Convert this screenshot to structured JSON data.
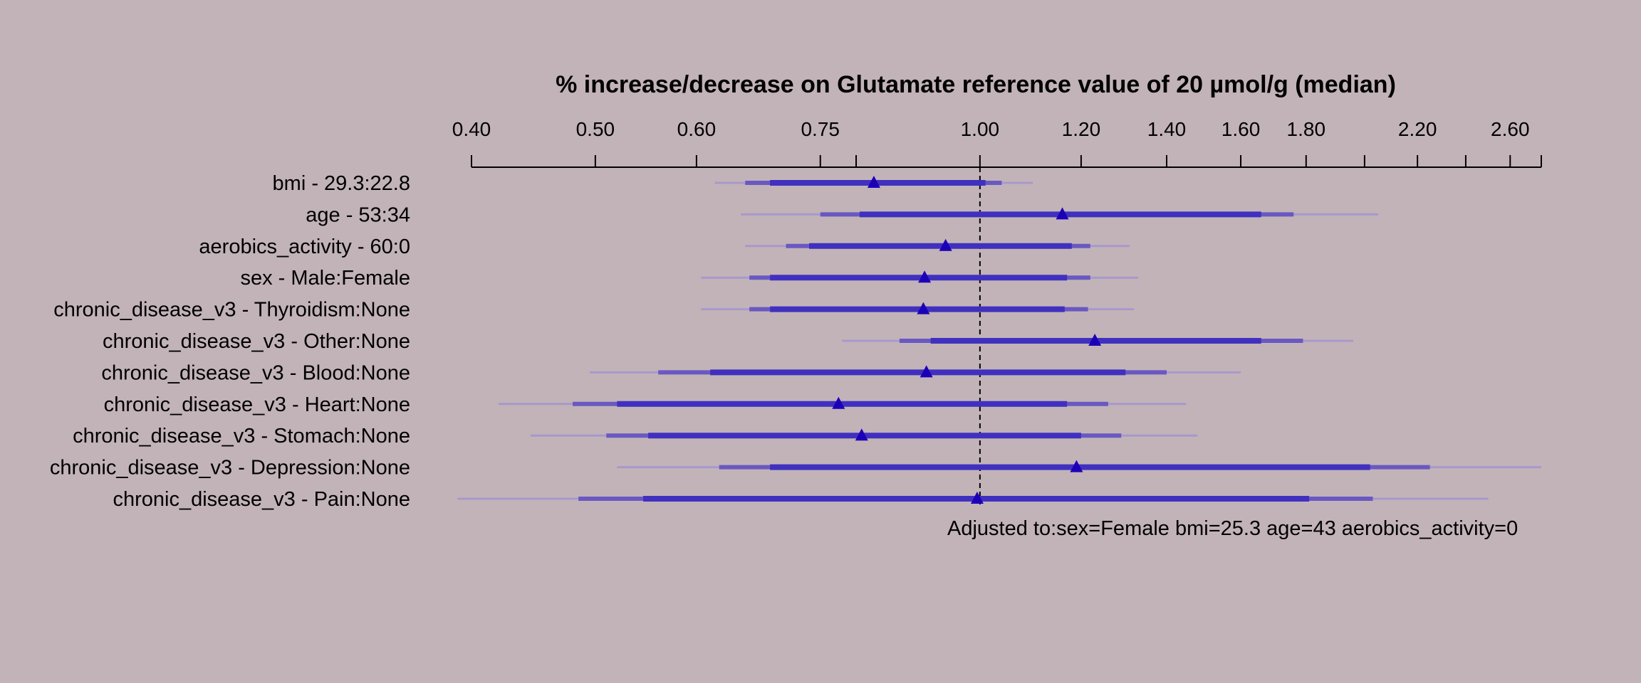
{
  "chart_data": {
    "type": "forest",
    "title": "% increase/decrease on Glutamate reference value of 20 µmol/g (median)",
    "x_scale": "log",
    "xlim": [
      0.4,
      2.75
    ],
    "ticks": [
      {
        "value": 0.4,
        "label": "0.40"
      },
      {
        "value": 0.5,
        "label": "0.50"
      },
      {
        "value": 0.6,
        "label": "0.60"
      },
      {
        "value": 0.75,
        "label": "0.75"
      },
      {
        "value": 0.8,
        "label": ""
      },
      {
        "value": 1.0,
        "label": "1.00"
      },
      {
        "value": 1.2,
        "label": "1.20"
      },
      {
        "value": 1.4,
        "label": "1.40"
      },
      {
        "value": 1.6,
        "label": "1.60"
      },
      {
        "value": 1.8,
        "label": "1.80"
      },
      {
        "value": 2.0,
        "label": ""
      },
      {
        "value": 2.2,
        "label": "2.20"
      },
      {
        "value": 2.4,
        "label": ""
      },
      {
        "value": 2.6,
        "label": "2.60"
      },
      {
        "value": 2.75,
        "label": ""
      }
    ],
    "reference": 1.0,
    "rows": [
      {
        "label": "bmi - 29.3:22.8",
        "estimate": 0.826,
        "ci_inner": [
          0.685,
          1.01
        ],
        "ci_mid": [
          0.655,
          1.04
        ],
        "ci_outer": [
          0.62,
          1.1
        ]
      },
      {
        "label": "age - 53:34",
        "estimate": 1.16,
        "ci_inner": [
          0.805,
          1.66
        ],
        "ci_mid": [
          0.75,
          1.76
        ],
        "ci_outer": [
          0.65,
          2.05
        ]
      },
      {
        "label": "aerobics_activity - 60:0",
        "estimate": 0.94,
        "ci_inner": [
          0.735,
          1.18
        ],
        "ci_mid": [
          0.705,
          1.22
        ],
        "ci_outer": [
          0.655,
          1.31
        ]
      },
      {
        "label": "sex - Male:Female",
        "estimate": 0.905,
        "ci_inner": [
          0.685,
          1.17
        ],
        "ci_mid": [
          0.66,
          1.22
        ],
        "ci_outer": [
          0.605,
          1.33
        ]
      },
      {
        "label": "chronic_disease_v3 - Thyroidism:None",
        "estimate": 0.903,
        "ci_inner": [
          0.685,
          1.165
        ],
        "ci_mid": [
          0.66,
          1.215
        ],
        "ci_outer": [
          0.605,
          1.32
        ]
      },
      {
        "label": "chronic_disease_v3 - Other:None",
        "estimate": 1.23,
        "ci_inner": [
          0.915,
          1.66
        ],
        "ci_mid": [
          0.865,
          1.79
        ],
        "ci_outer": [
          0.78,
          1.96
        ]
      },
      {
        "label": "chronic_disease_v3 - Blood:None",
        "estimate": 0.908,
        "ci_inner": [
          0.615,
          1.3
        ],
        "ci_mid": [
          0.56,
          1.4
        ],
        "ci_outer": [
          0.495,
          1.6
        ]
      },
      {
        "label": "chronic_disease_v3 - Heart:None",
        "estimate": 0.775,
        "ci_inner": [
          0.52,
          1.17
        ],
        "ci_mid": [
          0.48,
          1.26
        ],
        "ci_outer": [
          0.42,
          1.45
        ]
      },
      {
        "label": "chronic_disease_v3 - Stomach:None",
        "estimate": 0.808,
        "ci_inner": [
          0.55,
          1.2
        ],
        "ci_mid": [
          0.51,
          1.29
        ],
        "ci_outer": [
          0.445,
          1.48
        ]
      },
      {
        "label": "chronic_disease_v3 - Depression:None",
        "estimate": 1.19,
        "ci_inner": [
          0.685,
          2.02
        ],
        "ci_mid": [
          0.625,
          2.25
        ],
        "ci_outer": [
          0.52,
          2.75
        ]
      },
      {
        "label": "chronic_disease_v3 - Pain:None",
        "estimate": 0.995,
        "ci_inner": [
          0.545,
          1.81
        ],
        "ci_mid": [
          0.485,
          2.03
        ],
        "ci_outer": [
          0.39,
          2.5
        ]
      }
    ],
    "footnote": "Adjusted to:sex=Female bmi=25.3 age=43 aerobics_activity=0",
    "colors": {
      "background": "#c2b3b8",
      "inner": "#4030c0",
      "mid": "#6a58c2",
      "outer": "#a898cc",
      "marker": "#1c00b8",
      "axis": "#000000"
    }
  }
}
